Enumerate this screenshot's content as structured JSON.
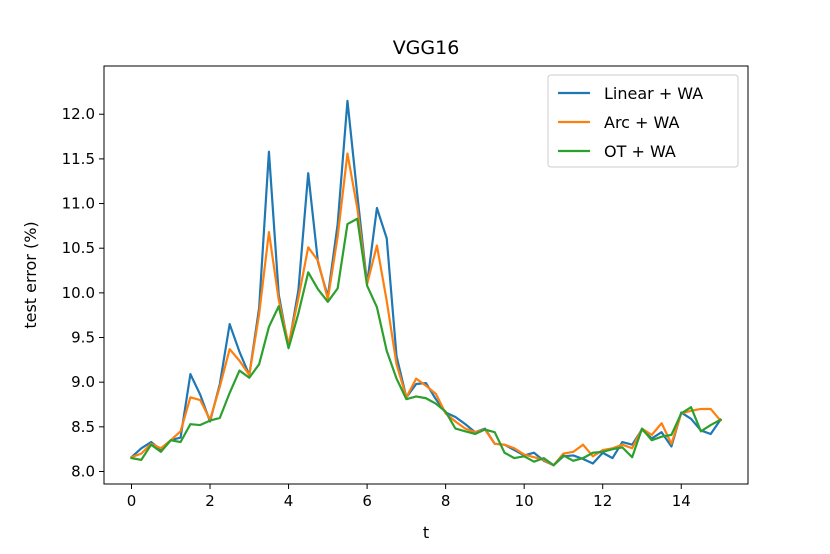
{
  "chart_data": {
    "type": "line",
    "title": "VGG16",
    "xlabel": "t",
    "ylabel": "test error (%)",
    "xlim": [
      -0.7,
      15.7
    ],
    "ylim": [
      7.86,
      12.54
    ],
    "xticks": [
      0,
      2,
      4,
      6,
      8,
      10,
      12,
      14
    ],
    "yticks": [
      8.0,
      8.5,
      9.0,
      9.5,
      10.0,
      10.5,
      11.0,
      11.5,
      12.0
    ],
    "xtick_labels": [
      "0",
      "2",
      "4",
      "6",
      "8",
      "10",
      "12",
      "14"
    ],
    "ytick_labels": [
      "8.0",
      "8.5",
      "9.0",
      "9.5",
      "10.0",
      "10.5",
      "11.0",
      "11.5",
      "12.0"
    ],
    "legend_position": "top-right",
    "grid": false,
    "x": [
      0,
      0.25,
      0.5,
      0.75,
      1,
      1.25,
      1.5,
      1.75,
      2,
      2.25,
      2.5,
      2.75,
      3,
      3.25,
      3.5,
      3.75,
      4,
      4.25,
      4.5,
      4.75,
      5,
      5.25,
      5.5,
      5.75,
      6,
      6.25,
      6.5,
      6.75,
      7,
      7.25,
      7.5,
      7.75,
      8,
      8.25,
      8.5,
      8.75,
      9,
      9.25,
      9.5,
      9.75,
      10,
      10.25,
      10.5,
      10.75,
      11,
      11.25,
      11.5,
      11.75,
      12,
      12.25,
      12.5,
      12.75,
      13,
      13.25,
      13.5,
      13.75,
      14,
      14.25,
      14.5,
      14.75,
      15
    ],
    "series": [
      {
        "name": "Linear + WA",
        "color": "#1f77b4",
        "values": [
          8.16,
          8.26,
          8.33,
          8.24,
          8.35,
          8.38,
          9.09,
          8.86,
          8.56,
          8.98,
          9.65,
          9.34,
          9.08,
          9.83,
          11.58,
          9.98,
          9.39,
          10.03,
          11.34,
          10.34,
          9.96,
          10.77,
          12.15,
          11.1,
          10.1,
          10.95,
          10.61,
          9.29,
          8.83,
          8.98,
          8.99,
          8.81,
          8.66,
          8.61,
          8.53,
          8.44,
          8.48,
          8.31,
          8.3,
          8.24,
          8.18,
          8.21,
          8.12,
          8.07,
          8.17,
          8.18,
          8.14,
          8.09,
          8.21,
          8.15,
          8.33,
          8.3,
          8.47,
          8.37,
          8.44,
          8.28,
          8.66,
          8.59,
          8.46,
          8.42,
          8.58
        ]
      },
      {
        "name": "Arc + WA",
        "color": "#ff7f0e",
        "values": [
          8.16,
          8.2,
          8.31,
          8.26,
          8.35,
          8.45,
          8.83,
          8.8,
          8.58,
          8.95,
          9.37,
          9.24,
          9.08,
          9.76,
          10.68,
          9.92,
          9.42,
          9.94,
          10.51,
          10.36,
          9.93,
          10.63,
          11.56,
          10.95,
          10.1,
          10.53,
          9.91,
          9.2,
          8.83,
          9.04,
          8.96,
          8.87,
          8.65,
          8.56,
          8.48,
          8.44,
          8.47,
          8.31,
          8.3,
          8.26,
          8.19,
          8.16,
          8.13,
          8.07,
          8.2,
          8.22,
          8.3,
          8.17,
          8.24,
          8.26,
          8.3,
          8.26,
          8.48,
          8.41,
          8.54,
          8.31,
          8.65,
          8.68,
          8.7,
          8.7,
          8.57
        ]
      },
      {
        "name": "OT + WA",
        "color": "#2ca02c",
        "values": [
          8.15,
          8.13,
          8.3,
          8.22,
          8.35,
          8.33,
          8.53,
          8.52,
          8.57,
          8.6,
          8.88,
          9.13,
          9.05,
          9.2,
          9.62,
          9.85,
          9.38,
          9.77,
          10.23,
          10.04,
          9.9,
          10.05,
          10.77,
          10.83,
          10.08,
          9.84,
          9.35,
          9.04,
          8.81,
          8.84,
          8.82,
          8.76,
          8.67,
          8.48,
          8.45,
          8.42,
          8.47,
          8.44,
          8.21,
          8.15,
          8.17,
          8.11,
          8.15,
          8.07,
          8.18,
          8.12,
          8.15,
          8.21,
          8.22,
          8.25,
          8.27,
          8.16,
          8.48,
          8.35,
          8.39,
          8.41,
          8.65,
          8.72,
          8.45,
          8.52,
          8.58
        ]
      }
    ]
  }
}
